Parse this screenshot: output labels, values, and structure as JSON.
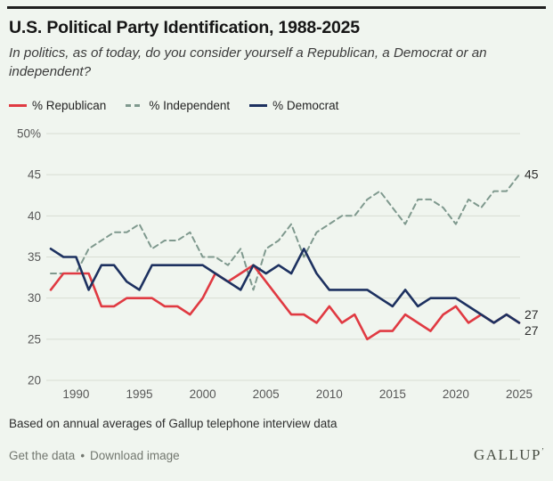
{
  "header": {
    "title": "U.S. Political Party Identification, 1988-2025",
    "subtitle": "In politics, as of today, do you consider yourself a Republican, a Democrat or an independent?"
  },
  "legend": {
    "items": [
      {
        "label": "% Republican",
        "color": "#e03a42",
        "style": "solid"
      },
      {
        "label": "% Independent",
        "color": "#7f998e",
        "style": "dashed"
      },
      {
        "label": "% Democrat",
        "color": "#1d3160",
        "style": "solid"
      }
    ]
  },
  "chart_data": {
    "type": "line",
    "title": "U.S. Political Party Identification, 1988-2025",
    "x": [
      1988,
      1989,
      1990,
      1991,
      1992,
      1993,
      1994,
      1995,
      1996,
      1997,
      1998,
      1999,
      2000,
      2001,
      2002,
      2003,
      2004,
      2005,
      2006,
      2007,
      2008,
      2009,
      2010,
      2011,
      2012,
      2013,
      2014,
      2015,
      2016,
      2017,
      2018,
      2019,
      2020,
      2021,
      2022,
      2023,
      2024,
      2025
    ],
    "series": [
      {
        "name": "% Independent",
        "color": "#7f998e",
        "dash": true,
        "values": [
          33,
          33,
          33,
          36,
          37,
          38,
          38,
          39,
          36,
          37,
          37,
          38,
          35,
          35,
          34,
          36,
          31,
          36,
          37,
          39,
          35,
          38,
          39,
          40,
          40,
          42,
          43,
          41,
          39,
          42,
          42,
          41,
          39,
          42,
          41,
          43,
          43,
          45
        ]
      },
      {
        "name": "% Republican",
        "color": "#e03a42",
        "dash": false,
        "values": [
          31,
          33,
          33,
          33,
          29,
          29,
          30,
          30,
          30,
          29,
          29,
          28,
          30,
          33,
          32,
          33,
          34,
          32,
          30,
          28,
          28,
          27,
          29,
          27,
          28,
          25,
          26,
          26,
          28,
          27,
          26,
          28,
          29,
          27,
          28,
          27,
          28,
          27
        ]
      },
      {
        "name": "% Democrat",
        "color": "#1d3160",
        "dash": false,
        "values": [
          36,
          35,
          35,
          31,
          34,
          34,
          32,
          31,
          34,
          34,
          34,
          34,
          34,
          33,
          32,
          31,
          34,
          33,
          34,
          33,
          36,
          33,
          31,
          31,
          31,
          31,
          30,
          29,
          31,
          29,
          30,
          30,
          30,
          29,
          28,
          27,
          28,
          27
        ]
      }
    ],
    "ylim": [
      20,
      50
    ],
    "y_ticks": [
      50,
      45,
      40,
      35,
      30,
      25,
      20
    ],
    "y_tick_labels": [
      "50%",
      "45",
      "40",
      "35",
      "30",
      "25",
      "20"
    ],
    "x_ticks": [
      1990,
      1995,
      2000,
      2005,
      2010,
      2015,
      2020,
      2025
    ],
    "grid": true,
    "legend_position": "top",
    "end_labels": [
      {
        "text": "45",
        "value": 45,
        "dy": 0
      },
      {
        "text": "27",
        "value": 27,
        "dy": -9
      },
      {
        "text": "27",
        "value": 27,
        "dy": 9
      }
    ],
    "gridline_color": "#d8ddd3"
  },
  "footer": {
    "source": "Based on annual averages of Gallup telephone interview data",
    "links": {
      "get_data": "Get the data",
      "separator": "•",
      "download": "Download image"
    },
    "logo": "GALLUP",
    "logo_mark": "’"
  }
}
